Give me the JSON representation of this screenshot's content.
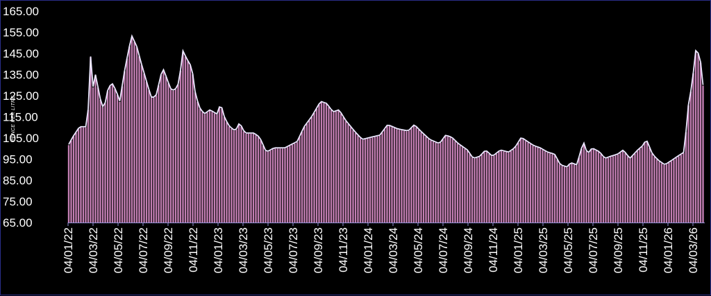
{
  "chart_data": {
    "type": "bar",
    "ylabel": "PENCE PER LITRE",
    "ylim": [
      65,
      165
    ],
    "yticks": [
      "165.00",
      "155.00",
      "145.00",
      "135.00",
      "125.00",
      "115.00",
      "105.00",
      "95.00",
      "85.00",
      "75.00",
      "65.00"
    ],
    "xtick_labels": [
      "04/01/22",
      "04/03/22",
      "04/05/22",
      "04/07/22",
      "04/09/22",
      "04/11/22",
      "04/01/23",
      "04/03/23",
      "04/05/23",
      "04/07/23",
      "04/09/23",
      "04/11/23",
      "04/01/24",
      "04/03/24",
      "04/05/24",
      "04/07/24",
      "04/09/24",
      "04/11/24",
      "04/01/25",
      "04/03/25",
      "04/05/25",
      "04/07/25",
      "04/09/25",
      "04/11/25",
      "04/01/26",
      "04/03/26"
    ],
    "x_start": "2022-01-04",
    "x_end": "2026-04-01",
    "series_points": [
      [
        "2022-01-04",
        101
      ],
      [
        "2022-01-15",
        105
      ],
      [
        "2022-02-01",
        110
      ],
      [
        "2022-02-20",
        110
      ],
      [
        "2022-03-01",
        148
      ],
      [
        "2022-03-06",
        128
      ],
      [
        "2022-03-12",
        135
      ],
      [
        "2022-03-22",
        124
      ],
      [
        "2022-04-01",
        118
      ],
      [
        "2022-04-10",
        127
      ],
      [
        "2022-04-20",
        131
      ],
      [
        "2022-05-01",
        127
      ],
      [
        "2022-05-10",
        122
      ],
      [
        "2022-05-20",
        135
      ],
      [
        "2022-06-01",
        147
      ],
      [
        "2022-06-08",
        153
      ],
      [
        "2022-06-20",
        148
      ],
      [
        "2022-07-01",
        140
      ],
      [
        "2022-07-10",
        134
      ],
      [
        "2022-07-25",
        124
      ],
      [
        "2022-08-05",
        124
      ],
      [
        "2022-08-15",
        132
      ],
      [
        "2022-08-22",
        138
      ],
      [
        "2022-09-01",
        133
      ],
      [
        "2022-09-10",
        128
      ],
      [
        "2022-09-20",
        127
      ],
      [
        "2022-10-01",
        131
      ],
      [
        "2022-10-10",
        146
      ],
      [
        "2022-10-20",
        142
      ],
      [
        "2022-11-01",
        138
      ],
      [
        "2022-11-10",
        125
      ],
      [
        "2022-11-20",
        119
      ],
      [
        "2022-12-01",
        116
      ],
      [
        "2022-12-15",
        118
      ],
      [
        "2023-01-01",
        116
      ],
      [
        "2023-01-10",
        121
      ],
      [
        "2023-01-20",
        114
      ],
      [
        "2023-02-01",
        110
      ],
      [
        "2023-02-15",
        108
      ],
      [
        "2023-02-25",
        112
      ],
      [
        "2023-03-10",
        107
      ],
      [
        "2023-04-01",
        107
      ],
      [
        "2023-04-15",
        105
      ],
      [
        "2023-05-01",
        98
      ],
      [
        "2023-05-20",
        100
      ],
      [
        "2023-06-15",
        100
      ],
      [
        "2023-07-15",
        103
      ],
      [
        "2023-08-01",
        110
      ],
      [
        "2023-08-20",
        115
      ],
      [
        "2023-09-10",
        122
      ],
      [
        "2023-09-25",
        121
      ],
      [
        "2023-10-10",
        117
      ],
      [
        "2023-10-25",
        118
      ],
      [
        "2023-11-10",
        113
      ],
      [
        "2023-12-01",
        108
      ],
      [
        "2023-12-20",
        104
      ],
      [
        "2024-01-10",
        105
      ],
      [
        "2024-02-01",
        106
      ],
      [
        "2024-02-20",
        111
      ],
      [
        "2024-03-15",
        109
      ],
      [
        "2024-04-10",
        108
      ],
      [
        "2024-04-25",
        111
      ],
      [
        "2024-05-10",
        108
      ],
      [
        "2024-06-01",
        104
      ],
      [
        "2024-06-25",
        102
      ],
      [
        "2024-07-10",
        106
      ],
      [
        "2024-07-25",
        105
      ],
      [
        "2024-08-10",
        102
      ],
      [
        "2024-09-01",
        99
      ],
      [
        "2024-09-15",
        95
      ],
      [
        "2024-10-01",
        96
      ],
      [
        "2024-10-15",
        99
      ],
      [
        "2024-11-01",
        96
      ],
      [
        "2024-11-20",
        99
      ],
      [
        "2024-12-10",
        98
      ],
      [
        "2024-12-25",
        100
      ],
      [
        "2025-01-10",
        105
      ],
      [
        "2025-01-25",
        103
      ],
      [
        "2025-02-10",
        101
      ],
      [
        "2025-02-25",
        100
      ],
      [
        "2025-03-15",
        98
      ],
      [
        "2025-04-01",
        97
      ],
      [
        "2025-04-15",
        92
      ],
      [
        "2025-05-01",
        91
      ],
      [
        "2025-05-10",
        93
      ],
      [
        "2025-05-25",
        92
      ],
      [
        "2025-06-10",
        103
      ],
      [
        "2025-06-20",
        97
      ],
      [
        "2025-07-01",
        100
      ],
      [
        "2025-07-20",
        98
      ],
      [
        "2025-08-01",
        95
      ],
      [
        "2025-08-15",
        96
      ],
      [
        "2025-09-01",
        97
      ],
      [
        "2025-09-15",
        99
      ],
      [
        "2025-10-01",
        95
      ],
      [
        "2025-10-20",
        99
      ],
      [
        "2025-11-01",
        101
      ],
      [
        "2025-11-10",
        104
      ],
      [
        "2025-11-25",
        97
      ],
      [
        "2025-12-10",
        94
      ],
      [
        "2025-12-25",
        92
      ],
      [
        "2026-01-10",
        94
      ],
      [
        "2026-01-25",
        96
      ],
      [
        "2026-02-10",
        98
      ],
      [
        "2026-02-20",
        120
      ],
      [
        "2026-03-01",
        130
      ],
      [
        "2026-03-10",
        146
      ],
      [
        "2026-03-20",
        144
      ],
      [
        "2026-04-01",
        122
      ]
    ],
    "colors": {
      "bars": "#c47fb4",
      "outline": "#ece8ff",
      "axis": "#8f8fd6",
      "text": "#ffffff",
      "background": "#000000",
      "border": "#2a2e8a"
    },
    "grid": false,
    "legend": "none"
  }
}
